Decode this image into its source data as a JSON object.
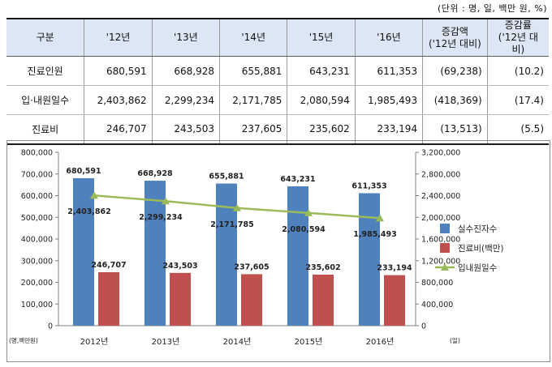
{
  "unit_note": "(단위 : 명, 일, 백만 원, %)",
  "table": {
    "headers": [
      "구분",
      "'12년",
      "'13년",
      "'14년",
      "'15년",
      "'16년",
      "증감액\n('12년 대비)",
      "증감률\n('12년 대비)"
    ],
    "rows": [
      {
        "label": "진료인원",
        "cells": [
          "680,591",
          "668,928",
          "655,881",
          "643,231",
          "611,353",
          "(69,238)",
          "(10.2)"
        ]
      },
      {
        "label": "입·내원일수",
        "cells": [
          "2,403,862",
          "2,299,234",
          "2,171,785",
          "2,080,594",
          "1,985,493",
          "(418,369)",
          "(17.4)"
        ]
      },
      {
        "label": "진료비",
        "cells": [
          "246,707",
          "243,503",
          "237,605",
          "235,602",
          "233,194",
          "(13,513)",
          "(5.5)"
        ]
      }
    ]
  },
  "chart_data": {
    "type": "bar",
    "categories": [
      "2012년",
      "2013년",
      "2014년",
      "2015년",
      "2016년"
    ],
    "series": [
      {
        "name": "실수진자수",
        "kind": "bar",
        "axis": "left",
        "color": "#4f81bd",
        "values": [
          680591,
          668928,
          655881,
          643231,
          611353
        ],
        "labels": [
          "680,591",
          "668,928",
          "655,881",
          "643,231",
          "611,353"
        ]
      },
      {
        "name": "진료비(백만)",
        "kind": "bar",
        "axis": "left",
        "color": "#c0504d",
        "values": [
          246707,
          243503,
          237605,
          235602,
          233194
        ],
        "labels": [
          "246,707",
          "243,503",
          "237,605",
          "235,602",
          "233,194"
        ]
      },
      {
        "name": "입내원일수",
        "kind": "line",
        "axis": "right",
        "color": "#9bbb59",
        "values": [
          2403862,
          2299234,
          2171785,
          2080594,
          1985493
        ],
        "labels": [
          "2,403,862",
          "2,299,234",
          "2,171,785",
          "2,080,594",
          "1,985,493"
        ]
      }
    ],
    "y_left": {
      "range": [
        0,
        800000
      ],
      "ticks": [
        "0",
        "100,000",
        "200,000",
        "300,000",
        "400,000",
        "500,000",
        "600,000",
        "700,000",
        "800,000"
      ],
      "unit": "(명,백만원)"
    },
    "y_right": {
      "range": [
        0,
        3200000
      ],
      "ticks": [
        "0",
        "400,000",
        "800,000",
        "1,200,000",
        "1,600,000",
        "2,000,000",
        "2,400,000",
        "2,800,000",
        "3,200,000"
      ],
      "unit": "(일)"
    },
    "grid": false,
    "legend_position": "right"
  }
}
